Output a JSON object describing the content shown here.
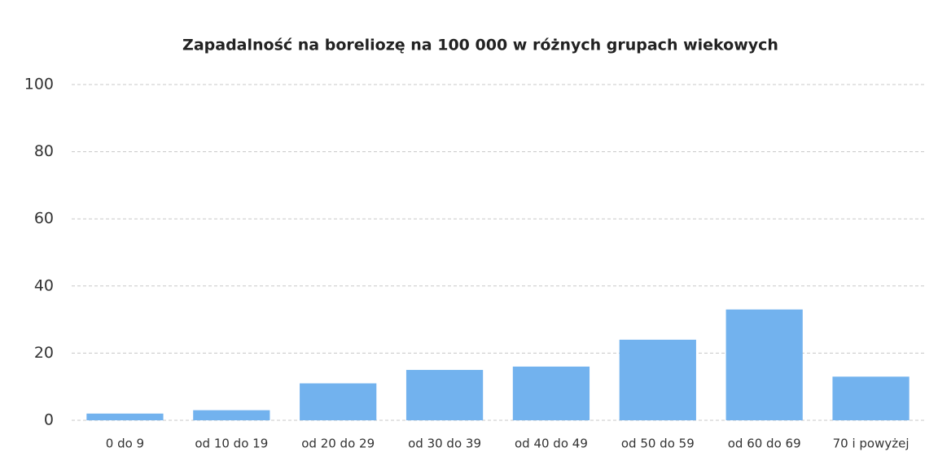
{
  "chart_data": {
    "type": "bar",
    "title": "Zapadalność na boreliozę na 100 000 w różnych grupach wiekowych",
    "categories": [
      "0 do 9",
      "od 10 do 19",
      "od 20 do 29",
      "od 30 do 39",
      "od 40 do 49",
      "od 50 do 59",
      "od 60 do 69",
      "70 i powyżej"
    ],
    "values": [
      2,
      3,
      11,
      15,
      16,
      24,
      33,
      13
    ],
    "color": "#72b2ee",
    "ylim": [
      0,
      100
    ],
    "yticks": [
      0,
      20,
      40,
      60,
      80,
      100
    ],
    "grid": true
  }
}
